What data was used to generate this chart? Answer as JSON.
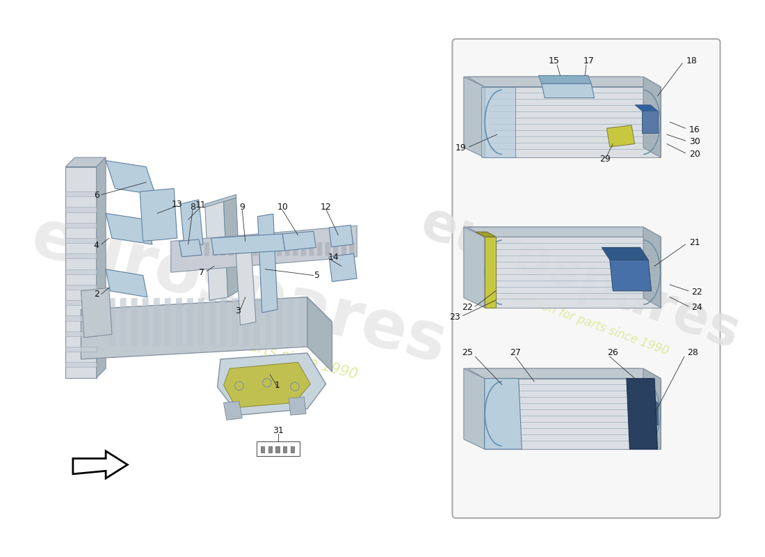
{
  "background_color": "#ffffff",
  "panel_border_color": "#aaaaaa",
  "watermark1": "eurospares",
  "watermark2": "a passion for parts since 1990",
  "blue_light": "#b8cedd",
  "blue_med": "#8aaec4",
  "blue_dark": "#5a7a94",
  "yellow_green": "#c8c840",
  "frame_light": "#d8dde2",
  "frame_med": "#c0c8d0",
  "frame_dark": "#a8b4bc",
  "stripe_color": "#9aacb8",
  "label_fs": 9,
  "lw": 0.8
}
